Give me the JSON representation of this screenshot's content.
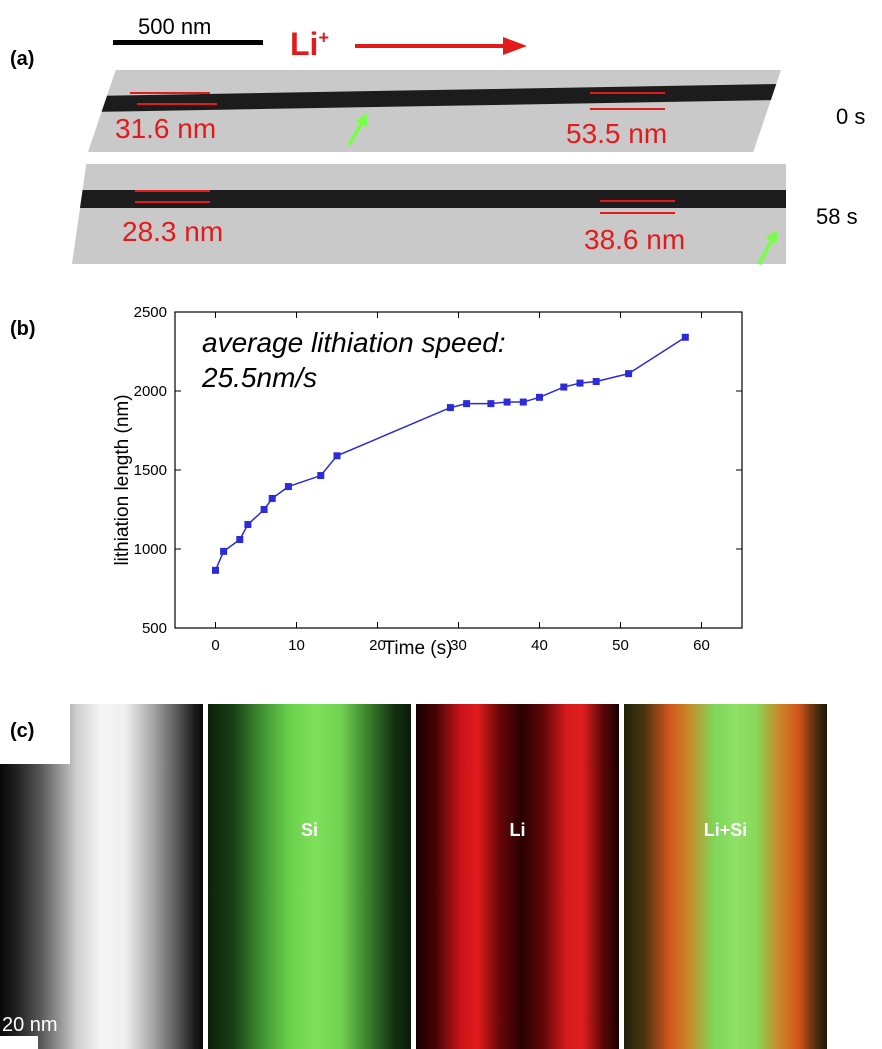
{
  "panel_a": {
    "label": "(a)",
    "scale_bar": "500 nm",
    "ion": "Li",
    "ion_charge": "+",
    "rows": [
      {
        "time": "0 s",
        "measure_left": "31.6 nm",
        "measure_right": "53.5 nm"
      },
      {
        "time": "58 s",
        "measure_left": "28.3 nm",
        "measure_right": "38.6 nm"
      }
    ],
    "colors": {
      "annotation": "#e31a1c",
      "arrow": "#7cfc4a"
    }
  },
  "panel_b": {
    "label": "(b)",
    "annotation_line1": "average lithiation speed:",
    "annotation_line2": "25.5nm/s"
  },
  "chart_data": {
    "type": "line",
    "xlabel": "Time (s)",
    "ylabel": "lithiation length (nm)",
    "xlim": [
      -5,
      65
    ],
    "ylim": [
      500,
      2500
    ],
    "xticks": [
      0,
      10,
      20,
      30,
      40,
      50,
      60
    ],
    "yticks": [
      500,
      1000,
      1500,
      2000,
      2500
    ],
    "grid": false,
    "series": [
      {
        "color": "#2b2bd9",
        "marker": "square",
        "x": [
          0,
          1,
          3,
          4,
          6,
          7,
          9,
          13,
          15,
          29,
          31,
          34,
          36,
          38,
          40,
          43,
          45,
          47,
          51,
          58
        ],
        "y": [
          865,
          985,
          1060,
          1155,
          1250,
          1320,
          1395,
          1465,
          1590,
          1895,
          1920,
          1920,
          1930,
          1930,
          1960,
          2025,
          2050,
          2060,
          2110,
          2340
        ]
      }
    ]
  },
  "panel_c": {
    "label": "(c)",
    "scale_bar": "20 nm",
    "maps": [
      {
        "label": ""
      },
      {
        "label": "Si"
      },
      {
        "label": "Li"
      },
      {
        "label": "Li+Si"
      }
    ]
  }
}
